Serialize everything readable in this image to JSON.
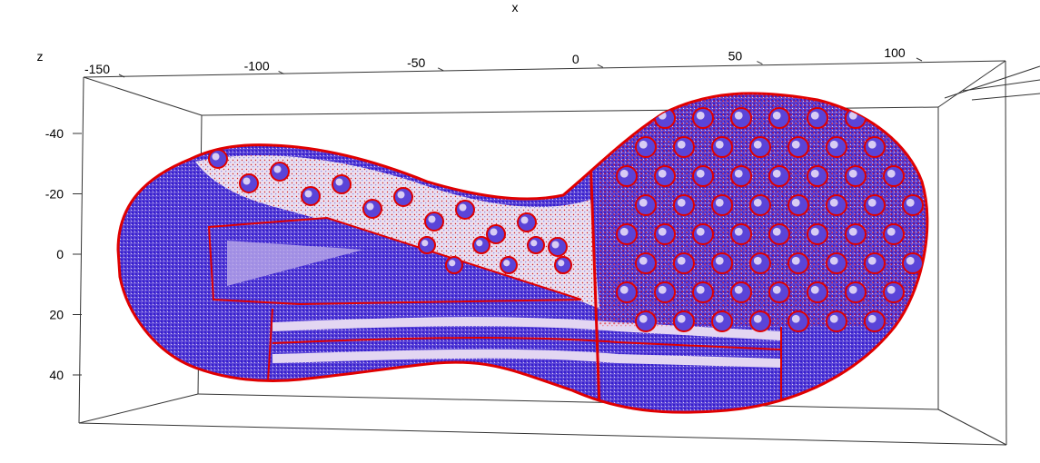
{
  "chart_data": {
    "type": "scatter",
    "title": "",
    "xlabel": "x",
    "ylabel": "",
    "zlabel": "z",
    "x_ticks": [
      -150,
      -100,
      -50,
      0,
      50,
      100
    ],
    "z_ticks": [
      -40,
      -20,
      0,
      20,
      40
    ],
    "x_range": [
      -155,
      125
    ],
    "z_range": [
      -48,
      48
    ],
    "grid": false,
    "legend": "none",
    "projection": "3d-box",
    "series": [
      {
        "style": "dense point cloud (shoe outsole)",
        "colors": [
          "#1a10d8",
          "#e00000"
        ]
      }
    ]
  }
}
